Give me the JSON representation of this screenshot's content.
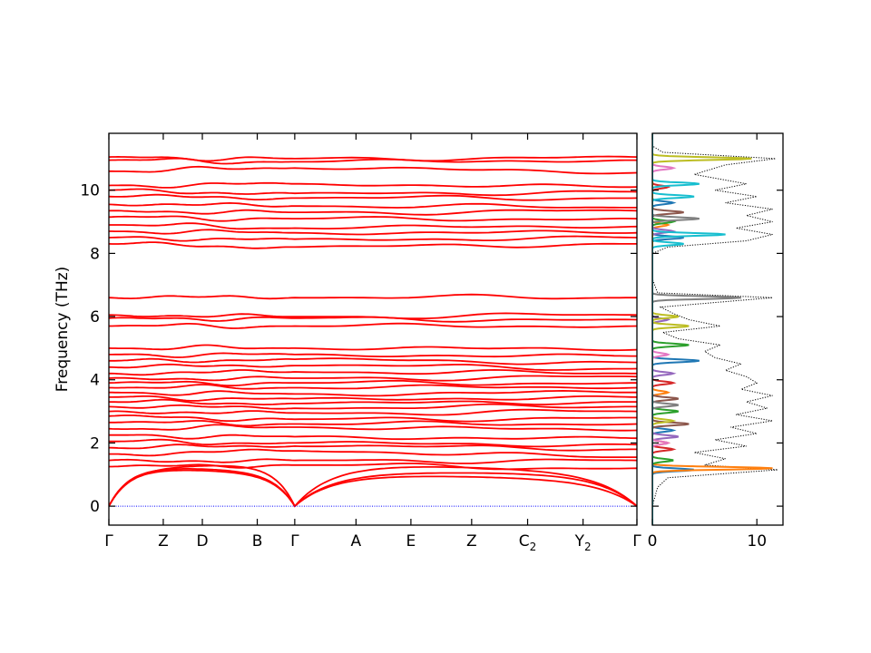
{
  "chart_data": [
    {
      "type": "line",
      "panel": "band-structure",
      "ylabel": "Frequency (THz)",
      "ylim": [
        -0.6,
        11.8
      ],
      "yticks": [
        0,
        2,
        4,
        6,
        8,
        10
      ],
      "path_labels": [
        "Γ",
        "Z",
        "D",
        "B",
        "Γ",
        "A",
        "E",
        "Z",
        "C",
        "Y",
        "Γ"
      ],
      "path_label_subscripts": [
        "",
        "",
        "",
        "",
        "",
        "",
        "",
        "",
        "2",
        "2",
        ""
      ],
      "path_positions": [
        0,
        0.103,
        0.177,
        0.281,
        0.352,
        0.468,
        0.572,
        0.687,
        0.793,
        0.898,
        1.0
      ],
      "band_color": "#ff0000",
      "zero_line_color": "#0000ff",
      "acoustic_bands_near_q": [
        [
          1.25,
          1.05,
          0.85
        ],
        [
          1.3,
          1.1,
          1.05
        ],
        [
          1.2,
          1.4,
          1.1
        ]
      ],
      "band_endpoints": [
        [
          1.25,
          1.3,
          1.2
        ],
        [
          1.45,
          1.45,
          1.45
        ],
        [
          1.65,
          1.75,
          1.55
        ],
        [
          1.85,
          1.9,
          1.8
        ],
        [
          2.05,
          2.0,
          1.95
        ],
        [
          2.25,
          2.2,
          2.15
        ],
        [
          2.45,
          2.5,
          2.4
        ],
        [
          2.65,
          2.6,
          2.6
        ],
        [
          2.85,
          2.75,
          2.8
        ],
        [
          3.0,
          2.95,
          3.0
        ],
        [
          3.15,
          3.1,
          3.15
        ],
        [
          3.3,
          3.25,
          3.3
        ],
        [
          3.45,
          3.4,
          3.45
        ],
        [
          3.6,
          3.55,
          3.6
        ],
        [
          3.75,
          3.75,
          3.75
        ],
        [
          3.9,
          3.9,
          3.9
        ],
        [
          4.05,
          4.05,
          4.1
        ],
        [
          4.2,
          4.25,
          4.2
        ],
        [
          4.4,
          4.45,
          4.35
        ],
        [
          4.6,
          4.65,
          4.55
        ],
        [
          4.8,
          4.8,
          4.75
        ],
        [
          5.0,
          5.0,
          4.95
        ],
        [
          5.7,
          5.7,
          5.7
        ],
        [
          5.95,
          5.95,
          5.9
        ],
        [
          6.05,
          6.0,
          6.05
        ],
        [
          6.6,
          6.6,
          6.6
        ],
        [
          8.3,
          8.2,
          8.3
        ],
        [
          8.5,
          8.45,
          8.5
        ],
        [
          8.7,
          8.65,
          8.65
        ],
        [
          8.9,
          8.8,
          8.85
        ],
        [
          9.15,
          9.1,
          9.1
        ],
        [
          9.35,
          9.3,
          9.35
        ],
        [
          9.55,
          9.5,
          9.45
        ],
        [
          9.8,
          9.75,
          9.75
        ],
        [
          10.0,
          9.9,
          9.95
        ],
        [
          10.15,
          10.2,
          10.1
        ],
        [
          10.6,
          10.7,
          10.55
        ],
        [
          10.95,
          10.9,
          10.95
        ],
        [
          11.05,
          11.0,
          11.05
        ]
      ]
    },
    {
      "type": "line",
      "panel": "phonon-dos",
      "xlim": [
        0,
        12.5
      ],
      "xticks": [
        0,
        10
      ],
      "ylim": [
        -0.6,
        11.8
      ],
      "total_dos_style": "dotted black",
      "total_dos": [
        [
          0.0,
          0
        ],
        [
          0.6,
          0.5
        ],
        [
          0.9,
          1.5
        ],
        [
          1.15,
          12.0
        ],
        [
          1.3,
          5.0
        ],
        [
          1.5,
          7.0
        ],
        [
          1.7,
          4.0
        ],
        [
          1.9,
          9.0
        ],
        [
          2.1,
          6.0
        ],
        [
          2.3,
          10.0
        ],
        [
          2.5,
          7.5
        ],
        [
          2.7,
          11.5
        ],
        [
          2.9,
          8.0
        ],
        [
          3.1,
          11.0
        ],
        [
          3.3,
          9.0
        ],
        [
          3.5,
          11.5
        ],
        [
          3.7,
          8.5
        ],
        [
          3.9,
          10.0
        ],
        [
          4.1,
          9.0
        ],
        [
          4.3,
          7.0
        ],
        [
          4.5,
          8.5
        ],
        [
          4.7,
          6.0
        ],
        [
          4.9,
          5.0
        ],
        [
          5.1,
          6.5
        ],
        [
          5.3,
          2.5
        ],
        [
          5.5,
          1.0
        ],
        [
          5.7,
          6.5
        ],
        [
          5.9,
          3.5
        ],
        [
          6.1,
          2.0
        ],
        [
          6.3,
          0.8
        ],
        [
          6.6,
          11.5
        ],
        [
          6.75,
          0.5
        ],
        [
          7.2,
          0.0
        ],
        [
          8.0,
          0.0
        ],
        [
          8.2,
          1.5
        ],
        [
          8.4,
          9.0
        ],
        [
          8.6,
          11.5
        ],
        [
          8.8,
          8.0
        ],
        [
          9.0,
          11.5
        ],
        [
          9.2,
          9.0
        ],
        [
          9.4,
          11.5
        ],
        [
          9.6,
          7.0
        ],
        [
          9.8,
          10.0
        ],
        [
          10.0,
          6.0
        ],
        [
          10.2,
          9.0
        ],
        [
          10.5,
          4.0
        ],
        [
          10.8,
          7.0
        ],
        [
          11.0,
          11.8
        ],
        [
          11.2,
          1.0
        ],
        [
          11.4,
          0.0
        ]
      ],
      "projected_colors": [
        "#1f77b4",
        "#ff7f0e",
        "#2ca02c",
        "#d62728",
        "#9467bd",
        "#8c564b",
        "#e377c2",
        "#7f7f7f",
        "#bcbd22",
        "#17becf"
      ],
      "projected_dos": [
        [
          [
            1.15,
            4.0
          ],
          [
            2.4,
            2.0
          ],
          [
            4.6,
            4.5
          ],
          [
            8.5,
            3.0
          ],
          [
            9.6,
            2.0
          ]
        ],
        [
          [
            1.2,
            11.5
          ],
          [
            2.0,
            1.5
          ],
          [
            3.6,
            1.5
          ],
          [
            8.9,
            1.5
          ]
        ],
        [
          [
            1.45,
            2.0
          ],
          [
            3.0,
            2.5
          ],
          [
            5.1,
            3.5
          ],
          [
            9.0,
            2.0
          ]
        ],
        [
          [
            1.8,
            2.0
          ],
          [
            3.9,
            2.0
          ],
          [
            10.1,
            1.5
          ]
        ],
        [
          [
            2.2,
            2.5
          ],
          [
            4.2,
            2.0
          ],
          [
            5.9,
            1.5
          ],
          [
            8.7,
            2.0
          ]
        ],
        [
          [
            2.6,
            3.5
          ],
          [
            3.4,
            2.5
          ],
          [
            9.3,
            3.0
          ]
        ],
        [
          [
            2.0,
            1.5
          ],
          [
            4.8,
            1.5
          ],
          [
            10.7,
            2.0
          ]
        ],
        [
          [
            3.2,
            2.5
          ],
          [
            6.6,
            8.5
          ],
          [
            9.1,
            4.5
          ]
        ],
        [
          [
            2.7,
            2.0
          ],
          [
            5.7,
            3.5
          ],
          [
            6.0,
            2.5
          ],
          [
            11.0,
            9.5
          ]
        ],
        [
          [
            8.3,
            3.0
          ],
          [
            8.6,
            7.0
          ],
          [
            9.8,
            4.0
          ],
          [
            10.2,
            4.5
          ]
        ]
      ]
    }
  ]
}
